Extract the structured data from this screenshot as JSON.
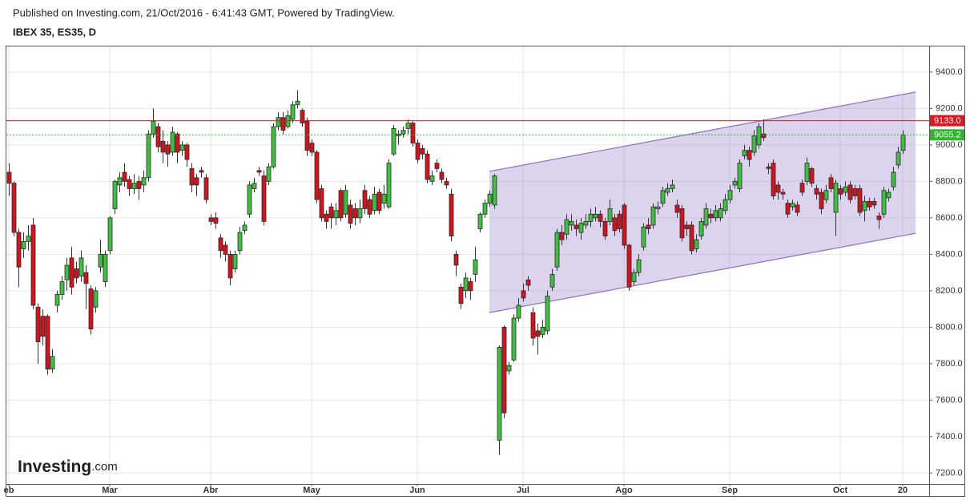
{
  "header": {
    "published": "Published on Investing.com, 21/Oct/2016 - 6:41:43 GMT, Powered by TradingView.",
    "symbol": "IBEX 35, ES35, D"
  },
  "logo": {
    "brand": "Investing",
    "suffix": ".com"
  },
  "chart_data": {
    "type": "candlestick",
    "categories": [
      "eb",
      null,
      null,
      null,
      null,
      null,
      null,
      null,
      null,
      null,
      null,
      null,
      null,
      null,
      null,
      null,
      null,
      null,
      null,
      null,
      null,
      "Mar",
      null,
      null,
      null,
      null,
      null,
      null,
      null,
      null,
      null,
      null,
      null,
      null,
      null,
      null,
      null,
      null,
      null,
      null,
      null,
      null,
      "Abr",
      null,
      null,
      null,
      null,
      null,
      null,
      null,
      null,
      null,
      null,
      null,
      null,
      null,
      null,
      null,
      null,
      null,
      null,
      null,
      null,
      "May",
      null,
      null,
      null,
      null,
      null,
      null,
      null,
      null,
      null,
      null,
      null,
      null,
      null,
      null,
      null,
      null,
      null,
      null,
      null,
      null,
      null,
      "Jun",
      null,
      null,
      null,
      null,
      null,
      null,
      null,
      null,
      null,
      null,
      null,
      null,
      null,
      null,
      null,
      null,
      null,
      null,
      null,
      null,
      null,
      "Jul",
      null,
      null,
      null,
      null,
      null,
      null,
      null,
      null,
      null,
      null,
      null,
      null,
      null,
      null,
      null,
      null,
      null,
      null,
      null,
      null,
      "Ago",
      null,
      null,
      null,
      null,
      null,
      null,
      null,
      null,
      null,
      null,
      null,
      null,
      null,
      null,
      null,
      null,
      null,
      null,
      null,
      null,
      null,
      "Sep",
      null,
      null,
      null,
      null,
      null,
      null,
      null,
      null,
      null,
      null,
      null,
      null,
      null,
      null,
      null,
      null,
      null,
      null,
      null,
      null,
      null,
      null,
      "Oct",
      null,
      null,
      null,
      null,
      null,
      null,
      null,
      null,
      null,
      null,
      null,
      null,
      "20"
    ],
    "open": [
      8850,
      8790,
      8520,
      8430,
      8470,
      8560,
      8110,
      8060,
      8060,
      7770,
      8120,
      8180,
      8260,
      8380,
      8320,
      8280,
      8300,
      8210,
      8110,
      8330,
      8250,
      8420,
      8650,
      8780,
      8850,
      8810,
      8760,
      8800,
      8780,
      8820,
      9060,
      9100,
      9020,
      9000,
      8960,
      9060,
      8970,
      9000,
      8870,
      8820,
      8860,
      8820,
      8600,
      8600,
      8490,
      8450,
      8400,
      8320,
      8420,
      8530,
      8620,
      8760,
      8860,
      8830,
      8800,
      8880,
      9100,
      9150,
      9100,
      9140,
      9220,
      9190,
      9130,
      9010,
      8960,
      8760,
      8620,
      8660,
      8600,
      8750,
      8620,
      8670,
      8650,
      8600,
      8750,
      8700,
      8640,
      8740,
      8680,
      8660,
      8950,
      9050,
      9060,
      9090,
      9120,
      9010,
      8980,
      8950,
      8800,
      8900,
      8850,
      8800,
      8730,
      8400,
      8220,
      8200,
      8250,
      8290,
      8540,
      8620,
      8680,
      8670,
      7380,
      8000,
      7760,
      7820,
      8050,
      8200,
      8260,
      8080,
      7980,
      7960,
      7980,
      8220,
      8330,
      8520,
      8510,
      8560,
      8560,
      8520,
      8560,
      8580,
      8600,
      8620,
      8580,
      8580,
      8600,
      8620,
      8670,
      8450,
      8250,
      8300,
      8440,
      8560,
      8560,
      8650,
      8680,
      8740,
      8760,
      8670,
      8650,
      8560,
      8560,
      8430,
      8500,
      8560,
      8620,
      8600,
      8600,
      8640,
      8700,
      8780,
      8760,
      8940,
      8970,
      8960,
      9000,
      9060,
      8880,
      8900,
      8780,
      8740,
      8680,
      8660,
      8670,
      8790,
      8800,
      8870,
      8760,
      8740,
      8700,
      8820,
      8630,
      8760,
      8740,
      8780,
      8760,
      8760,
      8640,
      8690,
      8690,
      8610,
      8620,
      8710,
      8770,
      8890,
      8970
    ],
    "high": [
      8900,
      8800,
      8540,
      8520,
      8560,
      8600,
      8130,
      8100,
      8070,
      7880,
      8200,
      8280,
      8380,
      8440,
      8360,
      8420,
      8340,
      8230,
      8220,
      8480,
      8420,
      8610,
      8810,
      8850,
      8900,
      8830,
      8840,
      8830,
      8860,
      9080,
      9200,
      9120,
      9080,
      9020,
      9100,
      9070,
      9020,
      9010,
      8900,
      8840,
      8880,
      8840,
      8620,
      8630,
      8510,
      8470,
      8420,
      8420,
      8550,
      8580,
      8800,
      8820,
      8880,
      8860,
      8900,
      9120,
      9180,
      9180,
      9190,
      9240,
      9300,
      9200,
      9150,
      9030,
      8970,
      8780,
      8640,
      8680,
      8680,
      8760,
      8780,
      8700,
      8680,
      8700,
      8780,
      8720,
      8770,
      8760,
      8780,
      8920,
      9110,
      9080,
      9100,
      9140,
      9130,
      9030,
      9000,
      8970,
      8860,
      8920,
      8870,
      8820,
      8760,
      8420,
      8240,
      8300,
      8270,
      8440,
      8630,
      8700,
      8750,
      8840,
      7900,
      8010,
      7810,
      8070,
      8160,
      8240,
      8280,
      8110,
      8020,
      8040,
      8200,
      8320,
      8540,
      8560,
      8620,
      8620,
      8590,
      8600,
      8620,
      8650,
      8660,
      8640,
      8600,
      8700,
      8620,
      8640,
      8680,
      8460,
      8320,
      8400,
      8570,
      8600,
      8680,
      8690,
      8770,
      8790,
      8810,
      8700,
      8670,
      8580,
      8580,
      8510,
      8600,
      8680,
      8650,
      8670,
      8680,
      8730,
      8780,
      8820,
      8920,
      9000,
      8990,
      9080,
      9120,
      9140,
      8900,
      8920,
      8800,
      8760,
      8700,
      8700,
      8690,
      8810,
      8930,
      8880,
      8780,
      8760,
      8780,
      8840,
      8810,
      8780,
      8800,
      8800,
      8780,
      8780,
      8720,
      8710,
      8710,
      8630,
      8770,
      8760,
      8880,
      8990,
      9080
    ],
    "low": [
      8720,
      8500,
      8220,
      8380,
      8420,
      8100,
      7800,
      7900,
      7740,
      7750,
      8080,
      8150,
      8200,
      8180,
      8240,
      8250,
      8100,
      7960,
      8080,
      8300,
      8220,
      8400,
      8620,
      8740,
      8770,
      8720,
      8730,
      8700,
      8740,
      8800,
      9040,
      8960,
      8900,
      8880,
      8940,
      8900,
      8940,
      8880,
      8740,
      8720,
      8820,
      8680,
      8560,
      8540,
      8380,
      8360,
      8230,
      8300,
      8400,
      8510,
      8600,
      8740,
      8830,
      8560,
      8780,
      8870,
      9080,
      9060,
      9090,
      9120,
      9200,
      9100,
      8940,
      8940,
      8680,
      8580,
      8540,
      8540,
      8560,
      8580,
      8600,
      8540,
      8560,
      8570,
      8620,
      8600,
      8620,
      8620,
      8650,
      8650,
      8940,
      9000,
      9040,
      9060,
      8990,
      8900,
      8920,
      8790,
      8780,
      8850,
      8790,
      8760,
      8470,
      8280,
      8100,
      8160,
      8150,
      8250,
      8520,
      8600,
      8660,
      8650,
      7300,
      7500,
      7740,
      7810,
      8030,
      8140,
      8200,
      7900,
      7850,
      7940,
      7960,
      8200,
      8310,
      8450,
      8480,
      8530,
      8500,
      8480,
      8540,
      8550,
      8580,
      8550,
      8480,
      8560,
      8500,
      8520,
      8430,
      8200,
      8230,
      8280,
      8420,
      8510,
      8540,
      8620,
      8660,
      8720,
      8740,
      8600,
      8470,
      8500,
      8400,
      8410,
      8480,
      8540,
      8570,
      8580,
      8580,
      8620,
      8680,
      8760,
      8740,
      8920,
      8880,
      8940,
      8980,
      9020,
      8840,
      8700,
      8700,
      8700,
      8600,
      8640,
      8610,
      8720,
      8780,
      8770,
      8700,
      8620,
      8680,
      8740,
      8500,
      8700,
      8720,
      8680,
      8700,
      8610,
      8580,
      8640,
      8650,
      8540,
      8600,
      8690,
      8750,
      8870,
      8950
    ],
    "close": [
      8790,
      8520,
      8330,
      8470,
      8500,
      8120,
      7920,
      7950,
      7770,
      7840,
      8180,
      8250,
      8340,
      8220,
      8270,
      8380,
      8240,
      7990,
      8200,
      8400,
      8400,
      8600,
      8800,
      8820,
      8800,
      8760,
      8790,
      8760,
      8820,
      9060,
      9130,
      8990,
      8960,
      8950,
      9070,
      8960,
      9000,
      8920,
      8780,
      8780,
      8850,
      8700,
      8580,
      8570,
      8420,
      8400,
      8270,
      8400,
      8520,
      8560,
      8780,
      8790,
      8850,
      8580,
      8880,
      9100,
      9150,
      9080,
      9160,
      9220,
      9240,
      9120,
      8970,
      8960,
      8700,
      8600,
      8580,
      8600,
      8640,
      8600,
      8750,
      8570,
      8600,
      8650,
      8650,
      8620,
      8730,
      8640,
      8730,
      8900,
      9090,
      9060,
      9080,
      9120,
      9010,
      8920,
      8950,
      8810,
      8830,
      8870,
      8810,
      8780,
      8500,
      8340,
      8130,
      8270,
      8200,
      8370,
      8620,
      8680,
      8730,
      8830,
      7890,
      7530,
      7790,
      8050,
      8120,
      8160,
      8230,
      7940,
      7950,
      8000,
      8170,
      8290,
      8520,
      8480,
      8590,
      8580,
      8540,
      8570,
      8580,
      8620,
      8620,
      8580,
      8500,
      8650,
      8530,
      8540,
      8450,
      8220,
      8300,
      8370,
      8550,
      8540,
      8660,
      8660,
      8750,
      8760,
      8780,
      8630,
      8490,
      8540,
      8420,
      8480,
      8580,
      8650,
      8600,
      8640,
      8650,
      8700,
      8750,
      8800,
      8900,
      8970,
      8920,
      9050,
      9100,
      9040,
      8870,
      8720,
      8740,
      8730,
      8620,
      8680,
      8630,
      8740,
      8900,
      8790,
      8730,
      8650,
      8750,
      8760,
      8790,
      8730,
      8770,
      8700,
      8720,
      8630,
      8690,
      8660,
      8670,
      8590,
      8750,
      8740,
      8850,
      8960,
      9055.2
    ],
    "up_color": "#3cc23c",
    "down_color": "#d8121c",
    "ylim": [
      7140,
      9540
    ],
    "yticks": [
      {
        "value": 7200,
        "label": "7200.0"
      },
      {
        "value": 7400,
        "label": "7400.0"
      },
      {
        "value": 7600,
        "label": "7600.0"
      },
      {
        "value": 7800,
        "label": "7800.0"
      },
      {
        "value": 8000,
        "label": "8000.0"
      },
      {
        "value": 8200,
        "label": "8200.0"
      },
      {
        "value": 8400,
        "label": "8400.0"
      },
      {
        "value": 8600,
        "label": "8600.0"
      },
      {
        "value": 8800,
        "label": "8800.0"
      },
      {
        "value": 9000,
        "label": "9000.0"
      },
      {
        "value": 9200,
        "label": "9200.0"
      },
      {
        "value": 9400,
        "label": "9400.0"
      }
    ],
    "grid": true,
    "price_lines": [
      {
        "value": 9133,
        "label": "9133.0",
        "color": "#e0161e",
        "style": "solid"
      },
      {
        "value": 9055.2,
        "label": "9055.2",
        "color": "#2fb52f",
        "style": "dotted"
      }
    ],
    "channel": {
      "x": [
        100,
        188.7
      ],
      "upper": [
        8855,
        9290
      ],
      "lower": [
        8080,
        8515
      ],
      "color": "#8c6fc4"
    }
  }
}
